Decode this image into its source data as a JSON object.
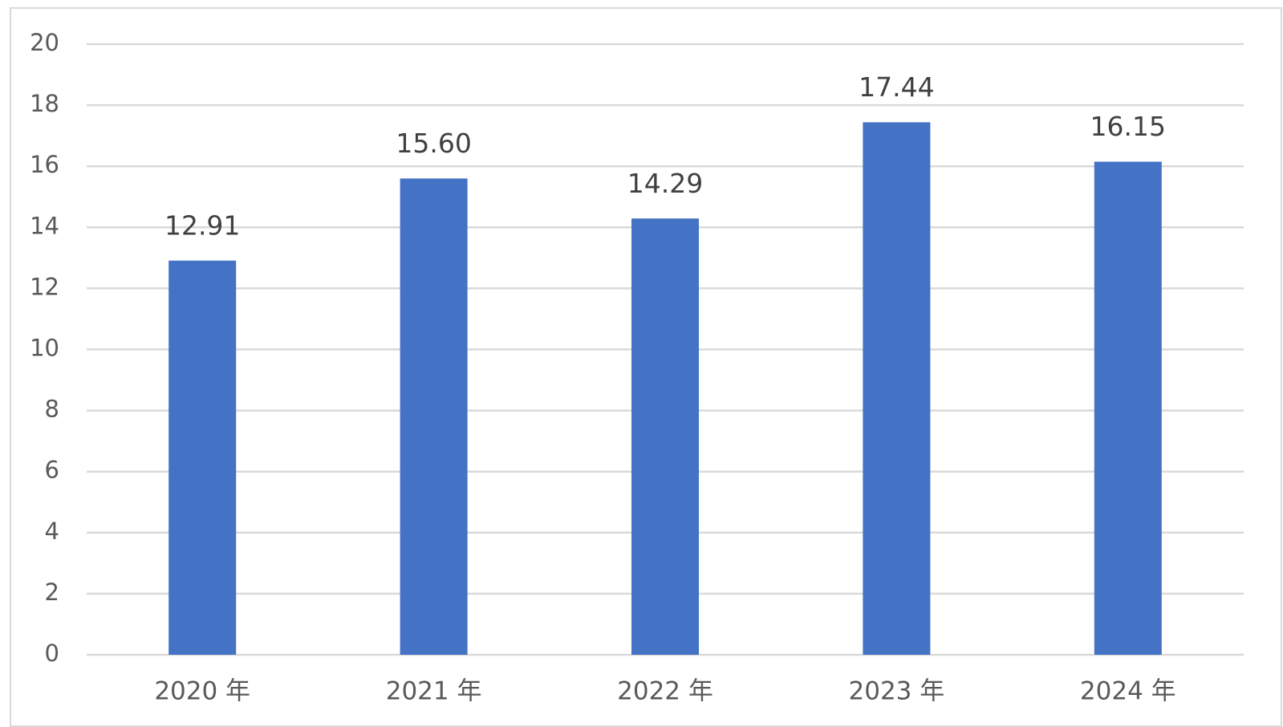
{
  "chart_data": {
    "type": "bar",
    "categories": [
      "2020 年",
      "2021 年",
      "2022 年",
      "2023 年",
      "2024 年"
    ],
    "values": [
      12.91,
      15.6,
      14.29,
      17.44,
      16.15
    ],
    "value_labels": [
      "12.91",
      "15.60",
      "14.29",
      "17.44",
      "16.15"
    ],
    "color": "#4472c4",
    "ylim": [
      0,
      20
    ],
    "yticks": [
      0,
      2,
      4,
      6,
      8,
      10,
      12,
      14,
      16,
      18,
      20
    ],
    "grid": true
  }
}
